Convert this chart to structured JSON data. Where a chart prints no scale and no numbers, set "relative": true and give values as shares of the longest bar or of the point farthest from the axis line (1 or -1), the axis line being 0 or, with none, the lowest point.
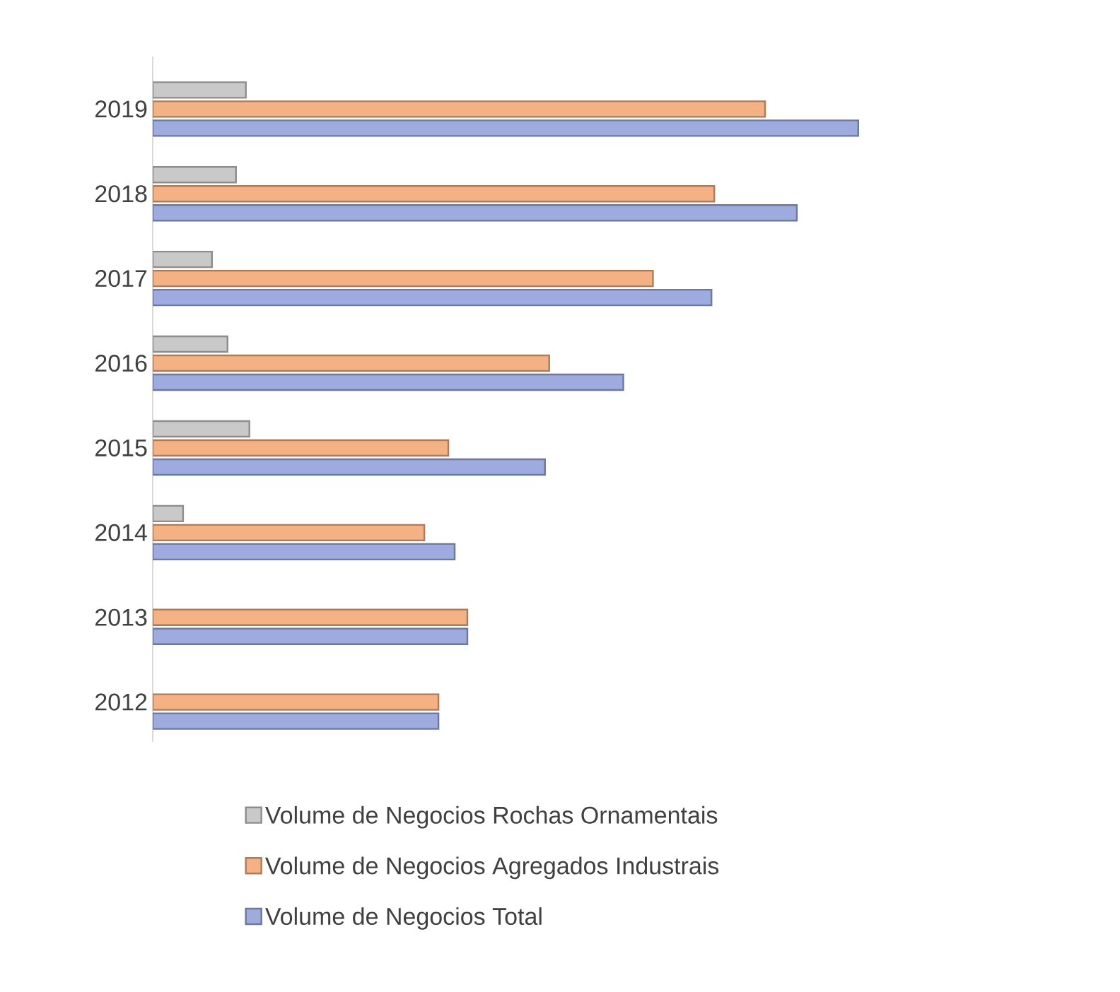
{
  "chart_data": {
    "type": "bar",
    "orientation": "horizontal",
    "relative": true,
    "legend": "bottom",
    "categories": [
      "2019",
      "2018",
      "2017",
      "2016",
      "2015",
      "2014",
      "2013",
      "2012"
    ],
    "series": [
      {
        "name": "Volume de Negocios Rochas Ornamentais",
        "color": "#c9c9c9",
        "values": [
          0.132,
          0.118,
          0.084,
          0.106,
          0.137,
          0.043,
          null,
          null
        ]
      },
      {
        "name": "Volume de Negocios Agregados Industrais",
        "color": "#f4b183",
        "values": [
          0.868,
          0.796,
          0.709,
          0.562,
          0.419,
          0.385,
          0.446,
          0.405
        ]
      },
      {
        "name": "Volume de Negocios Total",
        "color": "#9dabdf",
        "values": [
          1.0,
          0.913,
          0.792,
          0.667,
          0.556,
          0.428,
          0.446,
          0.405
        ]
      }
    ]
  }
}
